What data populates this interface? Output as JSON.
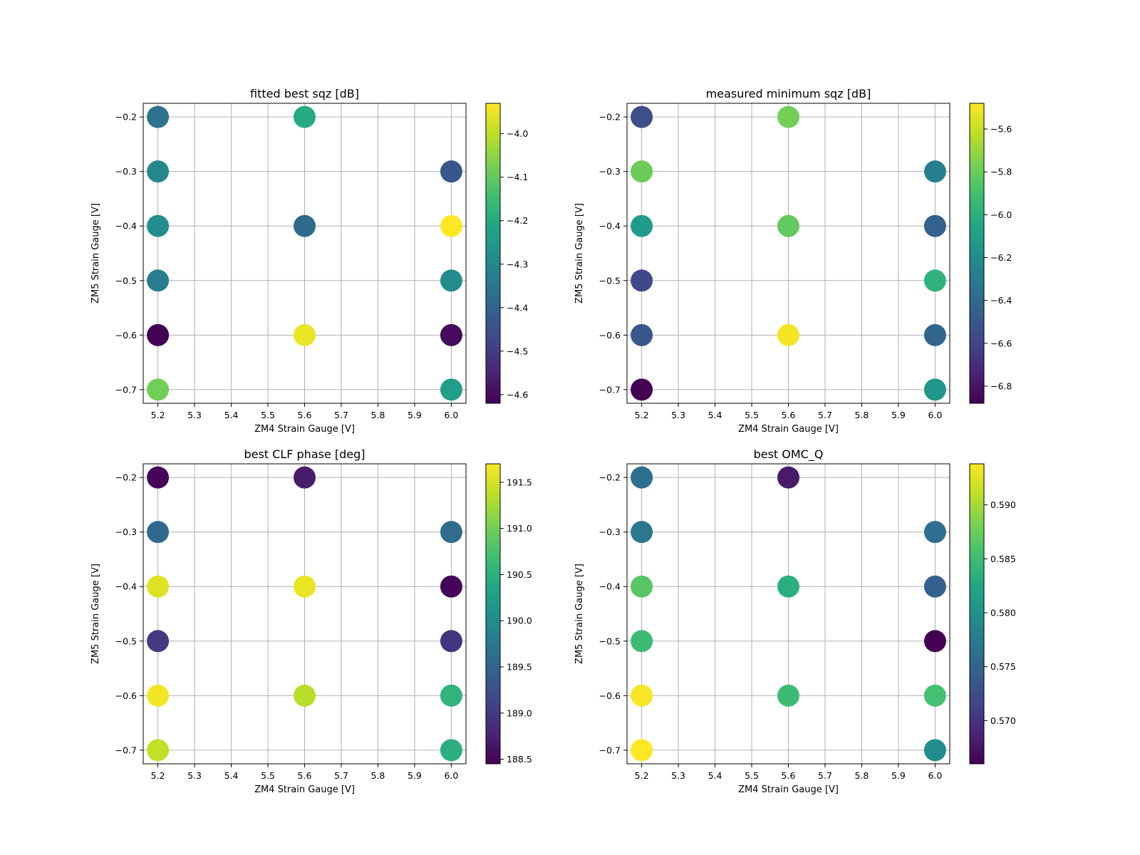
{
  "chart_data": [
    {
      "type": "scatter",
      "title": "fitted best sqz [dB]",
      "xlabel": "ZM4 Strain Gauge [V]",
      "ylabel": "ZM5 Strain Gauge [V]",
      "xlim": [
        5.16,
        6.04
      ],
      "ylim": [
        -0.725,
        -0.175
      ],
      "xticks": [
        "5.2",
        "5.3",
        "5.4",
        "5.5",
        "5.6",
        "5.7",
        "5.8",
        "5.9",
        "6.0"
      ],
      "yticks": [
        "−0.2",
        "−0.3",
        "−0.4",
        "−0.5",
        "−0.6",
        "−0.7"
      ],
      "grid": true,
      "colormap": "viridis",
      "clim": [
        -4.62,
        -3.93
      ],
      "cbar_ticks": [
        "−4.0",
        "−4.1",
        "−4.2",
        "−4.3",
        "−4.4",
        "−4.5",
        "−4.6"
      ],
      "cbar_tick_values": [
        -4.0,
        -4.1,
        -4.2,
        -4.3,
        -4.4,
        -4.5,
        -4.6
      ],
      "points": [
        {
          "x": 5.2,
          "y": -0.2,
          "c": -4.36
        },
        {
          "x": 5.2,
          "y": -0.3,
          "c": -4.3
        },
        {
          "x": 5.2,
          "y": -0.4,
          "c": -4.28
        },
        {
          "x": 5.2,
          "y": -0.5,
          "c": -4.33
        },
        {
          "x": 5.2,
          "y": -0.6,
          "c": -4.62
        },
        {
          "x": 5.2,
          "y": -0.7,
          "c": -4.08
        },
        {
          "x": 5.6,
          "y": -0.2,
          "c": -4.2
        },
        {
          "x": 5.6,
          "y": -0.4,
          "c": -4.38
        },
        {
          "x": 5.6,
          "y": -0.6,
          "c": -3.95
        },
        {
          "x": 6.0,
          "y": -0.3,
          "c": -4.43
        },
        {
          "x": 6.0,
          "y": -0.4,
          "c": -3.93
        },
        {
          "x": 6.0,
          "y": -0.5,
          "c": -4.29
        },
        {
          "x": 6.0,
          "y": -0.6,
          "c": -4.6
        },
        {
          "x": 6.0,
          "y": -0.7,
          "c": -4.24
        }
      ]
    },
    {
      "type": "scatter",
      "title": "measured minimum sqz [dB]",
      "xlabel": "ZM4 Strain Gauge [V]",
      "ylabel": "ZM5 Strain Gauge [V]",
      "xlim": [
        5.16,
        6.04
      ],
      "ylim": [
        -0.725,
        -0.175
      ],
      "xticks": [
        "5.2",
        "5.3",
        "5.4",
        "5.5",
        "5.6",
        "5.7",
        "5.8",
        "5.9",
        "6.0"
      ],
      "yticks": [
        "−0.2",
        "−0.3",
        "−0.4",
        "−0.5",
        "−0.6",
        "−0.7"
      ],
      "grid": true,
      "colormap": "viridis",
      "clim": [
        -6.88,
        -5.48
      ],
      "cbar_ticks": [
        "−5.6",
        "−5.8",
        "−6.0",
        "−6.2",
        "−6.4",
        "−6.6",
        "−6.8"
      ],
      "cbar_tick_values": [
        -5.6,
        -5.8,
        -6.0,
        -6.2,
        -6.4,
        -6.6,
        -6.8
      ],
      "points": [
        {
          "x": 5.2,
          "y": -0.2,
          "c": -6.55
        },
        {
          "x": 5.2,
          "y": -0.3,
          "c": -5.8
        },
        {
          "x": 5.2,
          "y": -0.4,
          "c": -6.12
        },
        {
          "x": 5.2,
          "y": -0.5,
          "c": -6.58
        },
        {
          "x": 5.2,
          "y": -0.6,
          "c": -6.5
        },
        {
          "x": 5.2,
          "y": -0.7,
          "c": -6.88
        },
        {
          "x": 5.6,
          "y": -0.2,
          "c": -5.78
        },
        {
          "x": 5.6,
          "y": -0.4,
          "c": -5.82
        },
        {
          "x": 5.6,
          "y": -0.6,
          "c": -5.5
        },
        {
          "x": 6.0,
          "y": -0.3,
          "c": -6.28
        },
        {
          "x": 6.0,
          "y": -0.4,
          "c": -6.45
        },
        {
          "x": 6.0,
          "y": -0.5,
          "c": -5.98
        },
        {
          "x": 6.0,
          "y": -0.6,
          "c": -6.42
        },
        {
          "x": 6.0,
          "y": -0.7,
          "c": -6.15
        }
      ]
    },
    {
      "type": "scatter",
      "title": "best CLF phase [deg]",
      "xlabel": "ZM4 Strain Gauge [V]",
      "ylabel": "ZM5 Strain Gauge [V]",
      "xlim": [
        5.16,
        6.04
      ],
      "ylim": [
        -0.725,
        -0.175
      ],
      "xticks": [
        "5.2",
        "5.3",
        "5.4",
        "5.5",
        "5.6",
        "5.7",
        "5.8",
        "5.9",
        "6.0"
      ],
      "yticks": [
        "−0.2",
        "−0.3",
        "−0.4",
        "−0.5",
        "−0.6",
        "−0.7"
      ],
      "grid": true,
      "colormap": "viridis",
      "clim": [
        188.45,
        191.7
      ],
      "cbar_ticks": [
        "191.5",
        "191.0",
        "190.5",
        "190.0",
        "189.5",
        "189.0",
        "188.5"
      ],
      "cbar_tick_values": [
        191.5,
        191.0,
        190.5,
        190.0,
        189.5,
        189.0,
        188.5
      ],
      "points": [
        {
          "x": 5.2,
          "y": -0.2,
          "c": 188.5
        },
        {
          "x": 5.2,
          "y": -0.3,
          "c": 189.55
        },
        {
          "x": 5.2,
          "y": -0.4,
          "c": 191.55
        },
        {
          "x": 5.2,
          "y": -0.5,
          "c": 189.0
        },
        {
          "x": 5.2,
          "y": -0.6,
          "c": 191.65
        },
        {
          "x": 5.2,
          "y": -0.7,
          "c": 191.4
        },
        {
          "x": 5.6,
          "y": -0.2,
          "c": 188.7
        },
        {
          "x": 5.6,
          "y": -0.4,
          "c": 191.6
        },
        {
          "x": 5.6,
          "y": -0.6,
          "c": 191.35
        },
        {
          "x": 6.0,
          "y": -0.3,
          "c": 189.6
        },
        {
          "x": 6.0,
          "y": -0.4,
          "c": 188.5
        },
        {
          "x": 6.0,
          "y": -0.5,
          "c": 188.95
        },
        {
          "x": 6.0,
          "y": -0.6,
          "c": 190.55
        },
        {
          "x": 6.0,
          "y": -0.7,
          "c": 190.5
        }
      ]
    },
    {
      "type": "scatter",
      "title": "best OMC_Q",
      "xlabel": "ZM4 Strain Gauge [V]",
      "ylabel": "ZM5 Strain Gauge [V]",
      "xlim": [
        5.16,
        6.04
      ],
      "ylim": [
        -0.725,
        -0.175
      ],
      "xticks": [
        "5.2",
        "5.3",
        "5.4",
        "5.5",
        "5.6",
        "5.7",
        "5.8",
        "5.9",
        "6.0"
      ],
      "yticks": [
        "−0.2",
        "−0.3",
        "−0.4",
        "−0.5",
        "−0.6",
        "−0.7"
      ],
      "grid": true,
      "colormap": "viridis",
      "clim": [
        0.566,
        0.5938
      ],
      "cbar_ticks": [
        "0.590",
        "0.585",
        "0.580",
        "0.575",
        "0.570"
      ],
      "cbar_tick_values": [
        0.59,
        0.585,
        0.58,
        0.575,
        0.57
      ],
      "points": [
        {
          "x": 5.2,
          "y": -0.2,
          "c": 0.576
        },
        {
          "x": 5.2,
          "y": -0.3,
          "c": 0.577
        },
        {
          "x": 5.2,
          "y": -0.4,
          "c": 0.5865
        },
        {
          "x": 5.2,
          "y": -0.5,
          "c": 0.585
        },
        {
          "x": 5.2,
          "y": -0.6,
          "c": 0.5935
        },
        {
          "x": 5.2,
          "y": -0.7,
          "c": 0.5938
        },
        {
          "x": 5.6,
          "y": -0.2,
          "c": 0.568
        },
        {
          "x": 5.6,
          "y": -0.4,
          "c": 0.5835
        },
        {
          "x": 5.6,
          "y": -0.6,
          "c": 0.585
        },
        {
          "x": 6.0,
          "y": -0.3,
          "c": 0.576
        },
        {
          "x": 6.0,
          "y": -0.4,
          "c": 0.5745
        },
        {
          "x": 6.0,
          "y": -0.5,
          "c": 0.566
        },
        {
          "x": 6.0,
          "y": -0.6,
          "c": 0.5855
        },
        {
          "x": 6.0,
          "y": -0.7,
          "c": 0.5795
        }
      ]
    }
  ]
}
